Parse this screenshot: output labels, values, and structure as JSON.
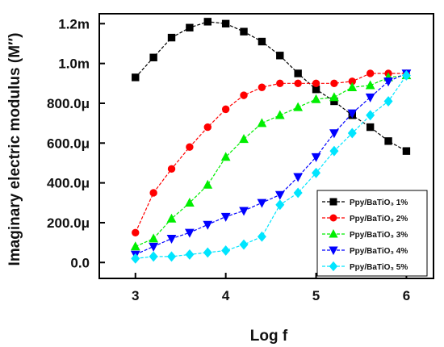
{
  "chart_data": {
    "type": "line",
    "xlabel": "Log f",
    "ylabel": "Imaginary electric modulus (M″)",
    "xlim": [
      2.6,
      6.3
    ],
    "ylim": [
      -8e-05,
      0.00125
    ],
    "x_ticks": [
      3,
      4,
      5,
      6
    ],
    "x_tick_labels": [
      "3",
      "4",
      "5",
      "6"
    ],
    "y_ticks": [
      0,
      0.0002,
      0.0004,
      0.0006,
      0.0008,
      0.001,
      0.0012
    ],
    "y_tick_labels": [
      "0.0",
      "200.0μ",
      "400.0μ",
      "600.0μ",
      "800.0μ",
      "1.0m",
      "1.2m"
    ],
    "legend_position": "lower-right",
    "grid": false,
    "series": [
      {
        "name": "Ppy/BaTiO₃ 1%",
        "color": "#000000",
        "marker": "square",
        "x": [
          3.0,
          3.2,
          3.4,
          3.6,
          3.8,
          4.0,
          4.2,
          4.4,
          4.6,
          4.8,
          5.0,
          5.2,
          5.4,
          5.6,
          5.8,
          6.0
        ],
        "y": [
          0.00093,
          0.00103,
          0.00113,
          0.00118,
          0.00121,
          0.0012,
          0.00116,
          0.00111,
          0.00104,
          0.00095,
          0.00087,
          0.00081,
          0.00074,
          0.00068,
          0.00061,
          0.00056
        ]
      },
      {
        "name": "Ppy/BaTiO₃ 2%",
        "color": "#ff0000",
        "marker": "circle",
        "x": [
          3.0,
          3.2,
          3.4,
          3.6,
          3.8,
          4.0,
          4.2,
          4.4,
          4.6,
          4.8,
          5.0,
          5.2,
          5.4,
          5.6,
          5.8,
          6.0
        ],
        "y": [
          0.00015,
          0.00035,
          0.00047,
          0.00058,
          0.00068,
          0.00077,
          0.00084,
          0.00088,
          0.0009,
          0.0009,
          0.0009,
          0.0009,
          0.00091,
          0.00095,
          0.00095,
          0.00095
        ]
      },
      {
        "name": "Ppy/BaTiO₃ 3%",
        "color": "#00ee00",
        "marker": "triangle-up",
        "x": [
          3.0,
          3.2,
          3.4,
          3.6,
          3.8,
          4.0,
          4.2,
          4.4,
          4.6,
          4.8,
          5.0,
          5.2,
          5.4,
          5.6,
          5.8,
          6.0
        ],
        "y": [
          8e-05,
          0.00012,
          0.00022,
          0.0003,
          0.00039,
          0.00053,
          0.00062,
          0.0007,
          0.00074,
          0.00078,
          0.00082,
          0.00083,
          0.00088,
          0.00089,
          0.00093,
          0.00094
        ]
      },
      {
        "name": "Ppy/BaTiO₃ 4%",
        "color": "#0000ff",
        "marker": "triangle-down",
        "x": [
          3.0,
          3.2,
          3.4,
          3.6,
          3.8,
          4.0,
          4.2,
          4.4,
          4.6,
          4.8,
          5.0,
          5.2,
          5.4,
          5.6,
          5.8,
          6.0
        ],
        "y": [
          4e-05,
          8e-05,
          0.00012,
          0.00015,
          0.00019,
          0.00023,
          0.00026,
          0.0003,
          0.00034,
          0.00043,
          0.00053,
          0.00065,
          0.00075,
          0.00083,
          0.00091,
          0.00095
        ]
      },
      {
        "name": "Ppy/BaTiO₃ 5%",
        "color": "#00e5ff",
        "marker": "diamond",
        "x": [
          3.0,
          3.2,
          3.4,
          3.6,
          3.8,
          4.0,
          4.2,
          4.4,
          4.6,
          4.8,
          5.0,
          5.2,
          5.4,
          5.6,
          5.8,
          6.0
        ],
        "y": [
          2e-05,
          3e-05,
          3e-05,
          4e-05,
          5e-05,
          6e-05,
          9e-05,
          0.00013,
          0.00029,
          0.00035,
          0.00045,
          0.00056,
          0.00065,
          0.00074,
          0.00081,
          0.00094
        ]
      }
    ]
  }
}
